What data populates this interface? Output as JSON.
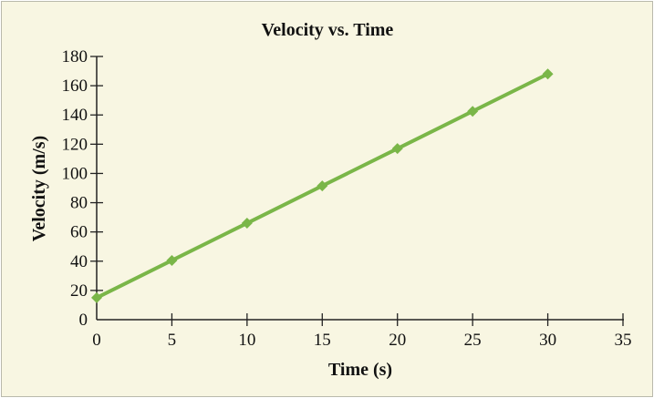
{
  "chart_data": {
    "type": "line",
    "title": "Velocity vs. Time",
    "xlabel": "Time (s)",
    "ylabel": "Velocity (m/s)",
    "xlim": [
      0,
      35
    ],
    "ylim": [
      0,
      180
    ],
    "xticks": [
      0,
      5,
      10,
      15,
      20,
      25,
      30,
      35
    ],
    "yticks": [
      0,
      20,
      40,
      60,
      80,
      100,
      120,
      140,
      160,
      180
    ],
    "grid": false,
    "legend": "none",
    "marker": "diamond",
    "series": [
      {
        "x": [
          0,
          5,
          10,
          15,
          20,
          25,
          30
        ],
        "y": [
          15,
          40.5,
          66,
          91.5,
          117,
          142.5,
          168
        ],
        "color": "#7ab648"
      }
    ]
  }
}
